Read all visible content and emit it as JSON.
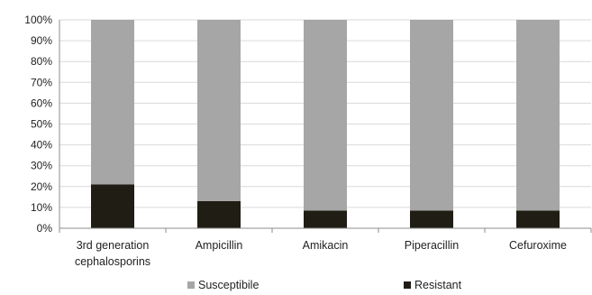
{
  "chart_data": {
    "type": "bar",
    "stacked": true,
    "percent_stacked": true,
    "categories": [
      [
        "3rd generation",
        "cephalosporins"
      ],
      [
        "Ampicillin"
      ],
      [
        "Amikacin"
      ],
      [
        "Piperacillin"
      ],
      [
        "Cefuroxime"
      ]
    ],
    "series": [
      {
        "name": "Resistant",
        "values": [
          21,
          13,
          8.5,
          8.5,
          8.5
        ],
        "color": "#1f1d14"
      },
      {
        "name": "Susceptibile",
        "values": [
          79,
          87,
          91.5,
          91.5,
          91.5
        ],
        "color": "#a6a6a6"
      }
    ],
    "legend_order": [
      "Susceptibile",
      "Resistant"
    ],
    "legend_position": "bottom",
    "ylim": [
      0,
      100
    ],
    "yticks": [
      "0%",
      "10%",
      "20%",
      "30%",
      "40%",
      "50%",
      "60%",
      "70%",
      "80%",
      "90%",
      "100%"
    ],
    "grid": true,
    "title": "",
    "xlabel": "",
    "ylabel": ""
  }
}
